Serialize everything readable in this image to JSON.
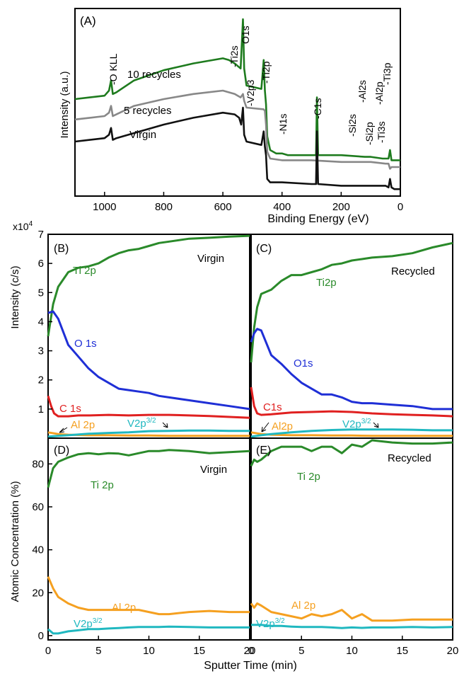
{
  "chart_data": [
    {
      "panel": "(A)",
      "type": "line",
      "xlabel": "Binding Energy (eV)",
      "ylabel": "Intensity (a.u.)",
      "xlim": [
        1100,
        0
      ],
      "x_reversed": true,
      "xticks": [
        "1000",
        "800",
        "600",
        "400",
        "200",
        "0"
      ],
      "xtick_values": [
        1000,
        800,
        600,
        400,
        200,
        0
      ],
      "ylim": [
        0,
        100
      ],
      "series": [
        {
          "name": "10 recycles",
          "color": "#1e7b1e",
          "x": [
            1100,
            1050,
            1000,
            985,
            978,
            972,
            960,
            900,
            800,
            700,
            600,
            580,
            560,
            540,
            532,
            528,
            520,
            470,
            462,
            458,
            454,
            450,
            440,
            420,
            400,
            380,
            300,
            285,
            282,
            278,
            200,
            120,
            100,
            60,
            40,
            35,
            30,
            20,
            0
          ],
          "y": [
            55,
            56,
            57,
            60,
            66,
            58,
            59,
            66,
            72,
            76,
            79,
            78,
            76,
            73,
            102,
            73,
            63,
            61,
            78,
            60,
            52,
            33,
            25,
            23,
            23,
            22,
            22,
            22,
            56,
            22,
            22,
            21,
            21,
            20,
            20,
            25,
            19,
            19,
            19
          ]
        },
        {
          "name": "5 recycles",
          "color": "#888888",
          "x": [
            1100,
            1050,
            1000,
            985,
            978,
            972,
            960,
            900,
            800,
            700,
            600,
            560,
            540,
            532,
            528,
            520,
            462,
            458,
            454,
            450,
            440,
            400,
            300,
            200,
            100,
            50,
            40,
            35,
            30,
            0
          ],
          "y": [
            43,
            44,
            45,
            47,
            51,
            45,
            46,
            51,
            55,
            58,
            60,
            58,
            56,
            58,
            54,
            50,
            49,
            48,
            40,
            24,
            20,
            19,
            19,
            18,
            18,
            17,
            17,
            14,
            15,
            15
          ]
        },
        {
          "name": "Virgin",
          "color": "#111111",
          "x": [
            1100,
            1050,
            1000,
            985,
            978,
            972,
            960,
            900,
            800,
            700,
            600,
            560,
            545,
            538,
            532,
            528,
            520,
            470,
            462,
            458,
            454,
            450,
            440,
            400,
            300,
            285,
            282,
            278,
            200,
            100,
            50,
            40,
            35,
            30,
            20,
            0
          ],
          "y": [
            30,
            31,
            32,
            34,
            38,
            31,
            32,
            35,
            40,
            44,
            47,
            46,
            44,
            40,
            50,
            34,
            30,
            28,
            36,
            27,
            22,
            8,
            6,
            6,
            5,
            5,
            36,
            5,
            4,
            4,
            4,
            3,
            8,
            3,
            2,
            2
          ]
        }
      ],
      "annotations": [
        "-O KLL",
        "-Ti2s",
        "O1s",
        "-V2p3",
        "-Ti2p",
        "-N1s",
        "-C1s",
        "-Si2s",
        "-Al2s",
        "-Si2p",
        "-Ti3s",
        "-Al2p",
        "-Ti3p"
      ],
      "line_labels": [
        "10 recycles",
        "5 recycles",
        "Virgin"
      ]
    },
    {
      "panel": "(B)",
      "type": "line",
      "ylabel": "Intensity (c/s)",
      "multiplier": "x10⁴",
      "xlim": [
        0,
        20
      ],
      "ylim": [
        0,
        7
      ],
      "yticks": [
        "1",
        "2",
        "3",
        "4",
        "5",
        "6",
        "7"
      ],
      "corner_label": "Virgin",
      "series": [
        {
          "name": "Ti 2p",
          "color": "#2a8a2a",
          "x": [
            0,
            0.5,
            1,
            2,
            3,
            4,
            5,
            6,
            7,
            8,
            9,
            10,
            11,
            12,
            14,
            16,
            18,
            20
          ],
          "y": [
            3.5,
            4.6,
            5.2,
            5.7,
            5.85,
            5.9,
            6.0,
            6.2,
            6.35,
            6.45,
            6.5,
            6.6,
            6.7,
            6.75,
            6.85,
            6.88,
            6.92,
            6.95
          ]
        },
        {
          "name": "O 1s",
          "color": "#1f2fd6",
          "x": [
            0,
            0.5,
            1,
            2,
            3,
            4,
            5,
            6,
            7,
            8,
            9,
            10,
            11,
            12,
            14,
            16,
            18,
            20
          ],
          "y": [
            4.3,
            4.35,
            4.1,
            3.2,
            2.8,
            2.4,
            2.1,
            1.9,
            1.7,
            1.65,
            1.6,
            1.55,
            1.45,
            1.4,
            1.3,
            1.2,
            1.1,
            1.0
          ]
        },
        {
          "name": "C 1s",
          "color": "#e02020",
          "x": [
            0,
            0.3,
            0.6,
            1,
            2,
            3,
            4,
            6,
            8,
            10,
            12,
            14,
            16,
            18,
            20
          ],
          "y": [
            1.45,
            1.1,
            0.85,
            0.75,
            0.75,
            0.78,
            0.78,
            0.8,
            0.78,
            0.8,
            0.8,
            0.78,
            0.76,
            0.73,
            0.7
          ]
        },
        {
          "name": "Al 2p",
          "color": "#f5a020",
          "x": [
            0,
            1,
            2,
            4,
            6,
            8,
            10,
            12,
            14,
            16,
            18,
            20
          ],
          "y": [
            0.2,
            0.14,
            0.12,
            0.1,
            0.1,
            0.09,
            0.09,
            0.08,
            0.08,
            0.08,
            0.08,
            0.08
          ]
        },
        {
          "name": "V2p3/2",
          "color": "#20b8c0",
          "x": [
            0,
            1,
            2,
            4,
            6,
            8,
            10,
            12,
            14,
            16,
            18,
            20
          ],
          "y": [
            0.05,
            0.08,
            0.1,
            0.15,
            0.18,
            0.2,
            0.24,
            0.25,
            0.26,
            0.26,
            0.25,
            0.25
          ]
        }
      ]
    },
    {
      "panel": "(C)",
      "type": "line",
      "xlim": [
        0,
        20
      ],
      "ylim": [
        0,
        7
      ],
      "corner_label": "Recycled",
      "series": [
        {
          "name": "Ti2p",
          "color": "#2a8a2a",
          "x": [
            0,
            0.3,
            0.6,
            1,
            2,
            3,
            4,
            5,
            6,
            7,
            8,
            9,
            10,
            11,
            12,
            14,
            16,
            18,
            20
          ],
          "y": [
            2.6,
            3.8,
            4.5,
            4.95,
            5.1,
            5.4,
            5.6,
            5.6,
            5.7,
            5.8,
            5.95,
            6.0,
            6.1,
            6.15,
            6.2,
            6.25,
            6.35,
            6.55,
            6.7
          ]
        },
        {
          "name": "O1s",
          "color": "#1f2fd6",
          "x": [
            0,
            0.3,
            0.6,
            1,
            2,
            3,
            4,
            5,
            6,
            7,
            8,
            9,
            10,
            11,
            12,
            14,
            16,
            18,
            20
          ],
          "y": [
            3.3,
            3.6,
            3.75,
            3.7,
            2.85,
            2.55,
            2.2,
            1.9,
            1.7,
            1.5,
            1.5,
            1.4,
            1.25,
            1.2,
            1.2,
            1.15,
            1.1,
            1.0,
            1.0
          ]
        },
        {
          "name": "C1s",
          "color": "#e02020",
          "x": [
            0,
            0.3,
            0.6,
            1,
            2,
            3,
            4,
            6,
            8,
            10,
            12,
            14,
            16,
            18,
            20
          ],
          "y": [
            1.75,
            1.1,
            0.85,
            0.8,
            0.82,
            0.85,
            0.88,
            0.9,
            0.92,
            0.9,
            0.85,
            0.82,
            0.8,
            0.78,
            0.75
          ]
        },
        {
          "name": "Al2p",
          "color": "#f5a020",
          "x": [
            0,
            1,
            2,
            4,
            6,
            8,
            10,
            12,
            14,
            16,
            18,
            20
          ],
          "y": [
            0.2,
            0.14,
            0.12,
            0.1,
            0.1,
            0.09,
            0.09,
            0.08,
            0.08,
            0.08,
            0.08,
            0.08
          ]
        },
        {
          "name": "V2p3/2",
          "color": "#20b8c0",
          "x": [
            0,
            1,
            2,
            4,
            6,
            8,
            10,
            12,
            14,
            16,
            18,
            20
          ],
          "y": [
            0.05,
            0.1,
            0.14,
            0.2,
            0.25,
            0.28,
            0.3,
            0.3,
            0.3,
            0.29,
            0.27,
            0.27
          ]
        }
      ]
    },
    {
      "panel": "(D)",
      "type": "line",
      "ylabel": "Atomic Concentration (%)",
      "xlabel": "Sputter Time (min)",
      "xlim": [
        0,
        20
      ],
      "ylim": [
        -2,
        92
      ],
      "yticks": [
        "0",
        "20",
        "40",
        "60",
        "80"
      ],
      "ytick_values": [
        0,
        20,
        40,
        60,
        80
      ],
      "xticks": [
        "0",
        "5",
        "10",
        "15",
        "20"
      ],
      "xtick_values": [
        0,
        5,
        10,
        15,
        20
      ],
      "corner_label": "Virgin",
      "series": [
        {
          "name": "Ti 2p",
          "color": "#2a8a2a",
          "x": [
            0,
            0.5,
            1,
            2,
            3,
            4,
            5,
            6,
            7,
            8,
            9,
            10,
            11,
            12,
            14,
            16,
            18,
            20
          ],
          "y": [
            69,
            78,
            81,
            83,
            84.5,
            85,
            84.5,
            85,
            84.8,
            84,
            85,
            86,
            86,
            86.5,
            86,
            85,
            85.5,
            86
          ]
        },
        {
          "name": "Al 2p",
          "color": "#f5a020",
          "x": [
            0,
            0.5,
            1,
            2,
            3,
            4,
            5,
            6,
            7,
            8,
            9,
            10,
            11,
            12,
            14,
            16,
            18,
            20
          ],
          "y": [
            27.5,
            22,
            18,
            15,
            13,
            12,
            12,
            12,
            12,
            12,
            12,
            11,
            10,
            10,
            11,
            11.5,
            11,
            11
          ]
        },
        {
          "name": "V2p3/2",
          "color": "#20b8c0",
          "x": [
            0,
            0.5,
            1,
            2,
            3,
            4,
            5,
            6,
            7,
            8,
            9,
            10,
            11,
            12,
            14,
            16,
            18,
            20
          ],
          "y": [
            3,
            1,
            1,
            2,
            2.5,
            3,
            3,
            3.3,
            3.5,
            3.8,
            4,
            4,
            4,
            4.2,
            4,
            3.8,
            3.8,
            3.8
          ]
        }
      ]
    },
    {
      "panel": "(E)",
      "type": "line",
      "xlabel": "Sputter Time (min)",
      "xlim": [
        0,
        20
      ],
      "ylim": [
        -2,
        92
      ],
      "xticks": [
        "0",
        "5",
        "10",
        "15",
        "20"
      ],
      "xtick_values": [
        0,
        5,
        10,
        15,
        20
      ],
      "corner_label": "Recycled",
      "series": [
        {
          "name": "Ti 2p",
          "color": "#2a8a2a",
          "x": [
            0,
            0.3,
            0.6,
            1,
            2,
            3,
            4,
            5,
            6,
            7,
            8,
            9,
            10,
            11,
            12,
            14,
            16,
            18,
            20
          ],
          "y": [
            79,
            82,
            81,
            82,
            86,
            88,
            88,
            88,
            86,
            88,
            88,
            85,
            89,
            88,
            91,
            90,
            89.5,
            89.5,
            90
          ]
        },
        {
          "name": "Al 2p",
          "color": "#f5a020",
          "x": [
            0,
            0.3,
            0.6,
            1,
            2,
            3,
            4,
            5,
            6,
            7,
            8,
            9,
            10,
            11,
            12,
            14,
            16,
            18,
            20
          ],
          "y": [
            15,
            13,
            15,
            14,
            11,
            10,
            9,
            8,
            10,
            9,
            10,
            12,
            8,
            10,
            7,
            7,
            7.5,
            7.5,
            7.5
          ]
        },
        {
          "name": "V2p3/2",
          "color": "#20b8c0",
          "x": [
            0,
            0.3,
            0.6,
            1,
            2,
            3,
            4,
            5,
            6,
            7,
            8,
            9,
            10,
            11,
            12,
            14,
            16,
            18,
            20
          ],
          "y": [
            5,
            5,
            5,
            5,
            4.5,
            4.5,
            4.2,
            4,
            4,
            4,
            3.8,
            3.5,
            3.8,
            3.6,
            3.8,
            3.8,
            4,
            3.8,
            4
          ]
        }
      ]
    }
  ],
  "labels": {
    "a_panel": "(A)",
    "b_panel": "(B)",
    "c_panel": "(C)",
    "d_panel": "(D)",
    "e_panel": "(E)",
    "a_xlabel": "Binding Energy (eV)",
    "a_ylabel": "Intensity (a.u.)",
    "multiplier_base": "x10",
    "multiplier_exp": "4",
    "b_ylabel": "Intensity (c/s)",
    "d_ylabel": "Atomic Concentration (%)",
    "x_sputter": "Sputter Time (min)",
    "tag_10": "10 recycles",
    "tag_5": "5 recycles",
    "tag_virgin": "Virgin",
    "o_kll": "-O KLL",
    "ti2s": "-Ti2s",
    "o1s": "O1s",
    "v2p3": "-V2p3",
    "ti2p": "-Ti2p",
    "n1s": "-N1s",
    "c1s": "-C1s",
    "si2s": "-Si2s",
    "al2s": "-Al2s",
    "si2p": "-Si2p",
    "ti3s": "-Ti3s",
    "al2p": "-Al2p",
    "ti3p": "-Ti3p",
    "b_virgin": "Virgin",
    "c_recycled": "Recycled",
    "d_virgin": "Virgin",
    "e_recycled": "Recycled",
    "b_ti": "Ti 2p",
    "b_o": "O 1s",
    "b_c": "C 1s",
    "b_al": "Al 2p",
    "b_v_base": "V2p",
    "b_v_sup": "3/2",
    "c_ti": "Ti2p",
    "c_o": "O1s",
    "c_c": "C1s",
    "c_al": "Al2p",
    "c_v_base": "V2p",
    "c_v_sup": "3/2",
    "d_ti": "Ti 2p",
    "d_al": "Al 2p",
    "d_v_base": "V2p",
    "d_v_sup": "3/2",
    "e_ti": "Ti 2p",
    "e_al": "Al 2p",
    "e_v_base": "V2p",
    "e_v_sup": "3/2"
  }
}
